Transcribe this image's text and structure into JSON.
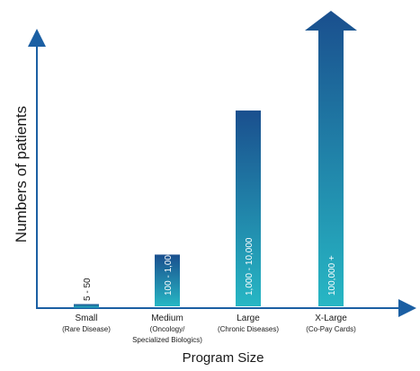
{
  "chart_data": {
    "type": "bar",
    "xlabel": "Program Size",
    "ylabel": "Numbers of patients",
    "categories": [
      {
        "name": "Small",
        "sub": [
          "(Rare Disease)"
        ],
        "range_label": "5 - 50",
        "value": 0.3
      },
      {
        "name": "Medium",
        "sub": [
          "(Oncology/",
          "Specialized Biologics)"
        ],
        "range_label": "100 - 1,000",
        "value": 7
      },
      {
        "name": "Large",
        "sub": [
          "(Chronic Diseases)"
        ],
        "range_label": "1,000 - 10,000",
        "value": 26.5
      },
      {
        "name": "X-Large",
        "sub": [
          "(Co-Pay Cards)"
        ],
        "range_label": "100,000 +",
        "value": 40
      }
    ],
    "ylim": [
      0,
      40
    ],
    "colors": {
      "bar_top": "#1a4f8e",
      "bar_bottom": "#27b7c4",
      "axis": "#1b5fa3"
    }
  }
}
